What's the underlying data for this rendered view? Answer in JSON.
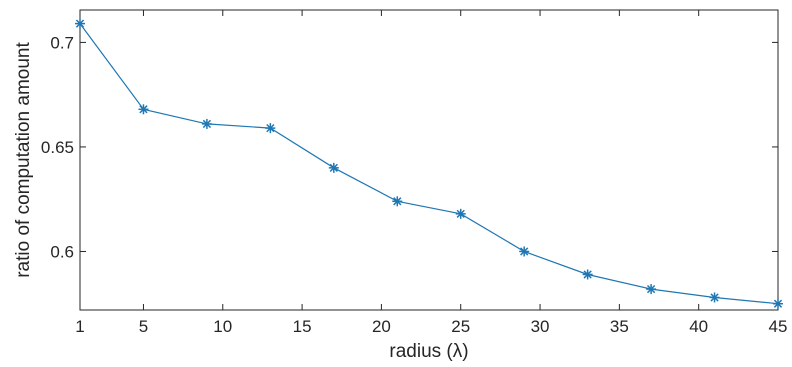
{
  "chart_data": {
    "type": "line",
    "title": "",
    "xlabel": "radius (λ)",
    "ylabel": "ratio of computation amount",
    "x": [
      1,
      5,
      9,
      13,
      17,
      21,
      25,
      29,
      33,
      37,
      41,
      45
    ],
    "series": [
      {
        "values": [
          0.709,
          0.668,
          0.661,
          0.659,
          0.64,
          0.624,
          0.618,
          0.6,
          0.589,
          0.582,
          0.578,
          0.575
        ],
        "color": "#1f77b4",
        "marker": "asterisk"
      }
    ],
    "xlim": [
      1,
      45
    ],
    "ylim": [
      0.572,
      0.7155
    ],
    "xticks": [
      1,
      5,
      10,
      15,
      20,
      25,
      30,
      35,
      40,
      45
    ],
    "xtick_labels": [
      "1",
      "5",
      "10",
      "15",
      "20",
      "25",
      "30",
      "35",
      "40",
      "45"
    ],
    "yticks": [
      0.6,
      0.65,
      0.7
    ],
    "ytick_labels": [
      "0.6",
      "0.65",
      "0.7"
    ],
    "grid": false,
    "legend": false
  }
}
